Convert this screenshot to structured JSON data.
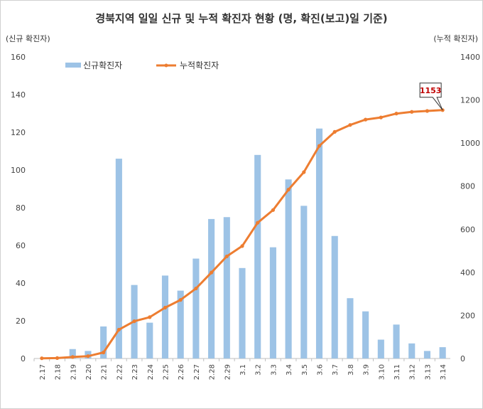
{
  "chart_data": {
    "type": "bar+line",
    "title": "경북지역 일일 신규 및 누적 확진자 현황 (명, 확진(보고)일 기준)",
    "y_left_label": "(신규 확진자)",
    "y_right_label": "(누적 확진자)",
    "categories": [
      "2.17",
      "2.18",
      "2.19",
      "2.20",
      "2.21",
      "2.22",
      "2.23",
      "2.24",
      "2.25",
      "2.26",
      "2.27",
      "2.28",
      "2.29",
      "3.1",
      "3.2",
      "3.3",
      "3.4",
      "3.5",
      "3.6",
      "3.7",
      "3.8",
      "3.9",
      "3.10",
      "3.11",
      "3.12",
      "3.13",
      "3.14"
    ],
    "y_left_ticks": [
      "0",
      "20",
      "40",
      "60",
      "80",
      "100",
      "120",
      "140",
      "160"
    ],
    "y_right_ticks": [
      "0",
      "200",
      "400",
      "600",
      "800",
      "1000",
      "1200",
      "1400"
    ],
    "ylim_left": [
      0,
      160
    ],
    "ylim_right": [
      0,
      1400
    ],
    "series": [
      {
        "name": "신규확진자",
        "type": "bar",
        "axis": "left",
        "color": "#9dc3e6",
        "values": [
          0,
          0,
          5,
          4,
          17,
          106,
          39,
          19,
          44,
          36,
          53,
          74,
          75,
          48,
          108,
          59,
          95,
          81,
          122,
          65,
          32,
          25,
          10,
          18,
          8,
          4,
          6
        ]
      },
      {
        "name": "누적확진자",
        "type": "line",
        "axis": "right",
        "color": "#ed7d31",
        "values": [
          1,
          2,
          7,
          11,
          28,
          134,
          173,
          192,
          236,
          272,
          325,
          399,
          474,
          522,
          630,
          689,
          784,
          865,
          987,
          1052,
          1084,
          1109,
          1119,
          1137,
          1145,
          1149,
          1153
        ]
      }
    ],
    "annotation": {
      "text": "1153",
      "color": "#c00000"
    },
    "legend": "top-left",
    "grid": false
  }
}
